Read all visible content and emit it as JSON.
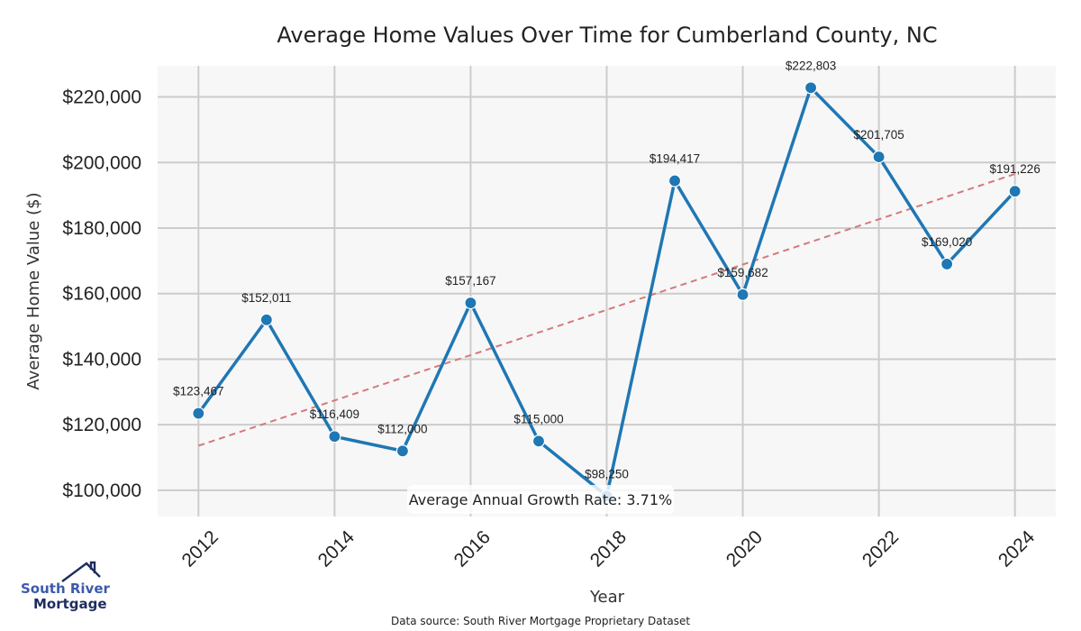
{
  "chart_data": {
    "type": "line",
    "title": "Average Home Values Over Time for Cumberland County, NC",
    "xlabel": "Year",
    "ylabel": "Average Home Value ($)",
    "x": [
      2012,
      2013,
      2014,
      2015,
      2016,
      2017,
      2018,
      2019,
      2020,
      2021,
      2022,
      2023,
      2024
    ],
    "series": [
      {
        "name": "Average Home Value",
        "values": [
          123467,
          152011,
          116409,
          112000,
          157167,
          115000,
          98250,
          194417,
          159682,
          222803,
          201705,
          169020,
          191226
        ],
        "labels": [
          "$123,467",
          "$152,011",
          "$116,409",
          "$112,000",
          "$157,167",
          "$115,000",
          "$98,250",
          "$194,417",
          "$159,682",
          "$222,803",
          "$201,705",
          "$169,020",
          "$191,226"
        ],
        "color": "#1f77b4"
      },
      {
        "name": "Trend",
        "style": "dashed",
        "start": [
          2012,
          113600
        ],
        "end": [
          2024,
          196500
        ],
        "color": "#d47a7a"
      }
    ],
    "xticks": [
      2012,
      2014,
      2016,
      2018,
      2020,
      2022,
      2024
    ],
    "xtick_labels": [
      "2012",
      "2014",
      "2016",
      "2018",
      "2020",
      "2022",
      "2024"
    ],
    "yticks": [
      100000,
      120000,
      140000,
      160000,
      180000,
      200000,
      220000
    ],
    "ytick_labels": [
      "$100,000",
      "$120,000",
      "$140,000",
      "$160,000",
      "$180,000",
      "$200,000",
      "$220,000"
    ],
    "xlim": [
      2011.4,
      2024.6
    ],
    "ylim": [
      92000,
      229500
    ],
    "grid": true,
    "annotation": "Average Annual Growth Rate: 3.71%",
    "background": "#f7f7f7",
    "grid_color": "#cccccc"
  },
  "footer": {
    "source": "Data source: South River Mortgage Proprietary Dataset"
  },
  "logo": {
    "line1": "South River",
    "line2": "Mortgage"
  }
}
